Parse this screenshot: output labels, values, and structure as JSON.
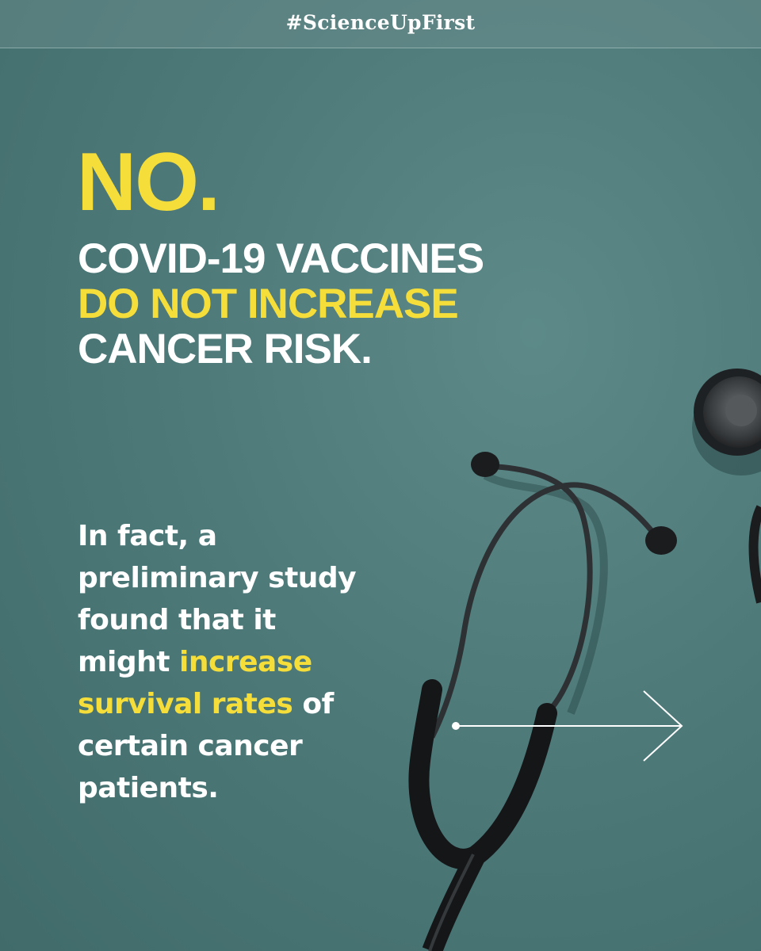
{
  "header": {
    "hashtag": "#ScienceUpFirst"
  },
  "headline": {
    "no": "NO.",
    "line1": "COVID-19 VACCINES",
    "line2": "DO NOT INCREASE",
    "line3": "CANCER RISK."
  },
  "body": {
    "line1": "In fact, a",
    "line2": "preliminary study",
    "line3": "found that it",
    "line4_plain": "might ",
    "line4_highlight": "increase",
    "line5_highlight": "survival rates",
    "line5_plain": " of",
    "line6": "certain cancer",
    "line7": "patients."
  },
  "colors": {
    "background": "#4f7b7b",
    "accent_yellow": "#f5dd3a",
    "text_white": "#ffffff"
  },
  "icons": {
    "next": "arrow-right-icon",
    "photo": "stethoscope"
  }
}
